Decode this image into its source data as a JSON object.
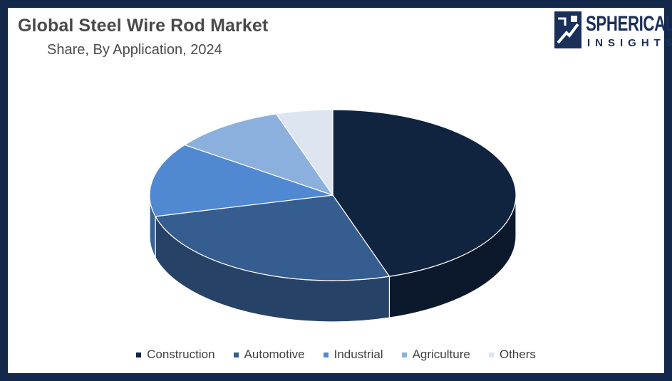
{
  "title": "Global Steel Wire Rod Market",
  "subtitle": "Share, By Application, 2024",
  "logo": {
    "word1": "SPHERICAL",
    "word2": "INSIGHTS"
  },
  "colors": {
    "frame": "#13284a",
    "Construction": "#10233f",
    "Automotive": "#355d8f",
    "Industrial": "#5088d2",
    "Agriculture": "#8cb0de",
    "Others": "#dde5f0"
  },
  "chart_data": {
    "type": "pie",
    "title": "Global Steel Wire Rod Market",
    "subtitle": "Share, By Application, 2024",
    "labels": [
      "Construction",
      "Automotive",
      "Industrial",
      "Agriculture",
      "Others"
    ],
    "values": [
      45,
      26,
      14,
      10,
      5
    ],
    "legend": "bottom",
    "style": "3d"
  }
}
